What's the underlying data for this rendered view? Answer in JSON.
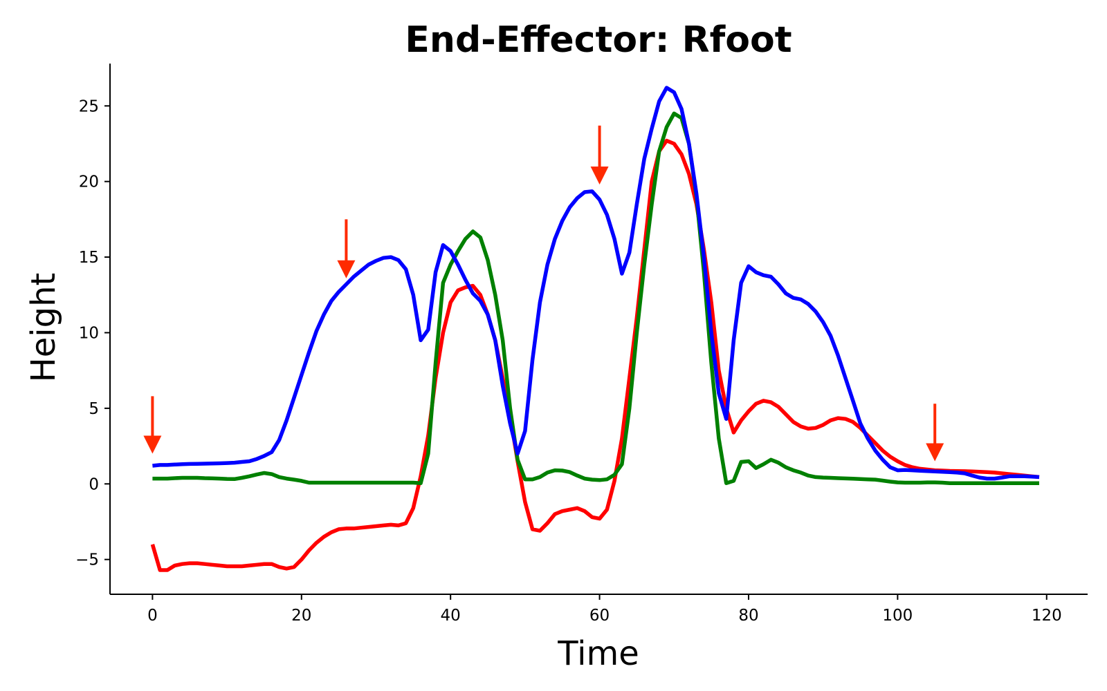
{
  "chart_data": {
    "type": "line",
    "title": "End-Effector: Rfoot",
    "xlabel": "Time",
    "ylabel": "Height",
    "xlim": [
      -5.7,
      125.5
    ],
    "ylim": [
      -7.3,
      27.8
    ],
    "xticks": [
      0,
      20,
      40,
      60,
      80,
      100,
      120
    ],
    "yticks": [
      -5,
      0,
      5,
      10,
      15,
      20,
      25
    ],
    "ytick_labels": [
      "−5",
      "0",
      "5",
      "10",
      "15",
      "20",
      "25"
    ],
    "grid": false,
    "series": [
      {
        "color": "#ff0000",
        "x": [
          0,
          1,
          2,
          3,
          4,
          5,
          6,
          7,
          8,
          9,
          10,
          11,
          12,
          13,
          14,
          15,
          16,
          17,
          18,
          19,
          20,
          21,
          22,
          23,
          24,
          25,
          26,
          27,
          28,
          29,
          30,
          31,
          32,
          33,
          34,
          35,
          36,
          37,
          38,
          39,
          40,
          41,
          42,
          43,
          44,
          45,
          46,
          47,
          48,
          49,
          50,
          51,
          52,
          53,
          54,
          55,
          56,
          57,
          58,
          59,
          60,
          61,
          62,
          63,
          64,
          65,
          66,
          67,
          68,
          69,
          70,
          71,
          72,
          73,
          74,
          75,
          76,
          77,
          78,
          79,
          80,
          81,
          82,
          83,
          84,
          85,
          86,
          87,
          88,
          89,
          90,
          91,
          92,
          93,
          94,
          95,
          96,
          97,
          98,
          99,
          100,
          101,
          102,
          103,
          104,
          105,
          106,
          107,
          108,
          109,
          110,
          111,
          112,
          113,
          114,
          115,
          116,
          117,
          118,
          119
        ],
        "y": [
          -4.0,
          -5.7,
          -5.7,
          -5.4,
          -5.3,
          -5.25,
          -5.25,
          -5.3,
          -5.35,
          -5.4,
          -5.45,
          -5.45,
          -5.45,
          -5.4,
          -5.35,
          -5.3,
          -5.3,
          -5.5,
          -5.6,
          -5.5,
          -5.0,
          -4.4,
          -3.9,
          -3.5,
          -3.2,
          -3.0,
          -2.95,
          -2.95,
          -2.9,
          -2.85,
          -2.8,
          -2.75,
          -2.7,
          -2.75,
          -2.6,
          -1.6,
          0.5,
          3.2,
          7.0,
          10.0,
          12.0,
          12.8,
          13.0,
          13.1,
          12.5,
          11.2,
          9.5,
          7.0,
          4.5,
          1.5,
          -1.2,
          -3.0,
          -3.1,
          -2.6,
          -2.0,
          -1.8,
          -1.7,
          -1.6,
          -1.8,
          -2.2,
          -2.3,
          -1.7,
          0.2,
          3.0,
          7.0,
          11.0,
          15.5,
          20.0,
          22.0,
          22.7,
          22.5,
          21.8,
          20.5,
          18.5,
          15.5,
          12.0,
          7.5,
          5.0,
          3.4,
          4.2,
          4.8,
          5.3,
          5.5,
          5.4,
          5.1,
          4.6,
          4.1,
          3.8,
          3.65,
          3.7,
          3.9,
          4.2,
          4.35,
          4.3,
          4.1,
          3.7,
          3.2,
          2.7,
          2.2,
          1.8,
          1.5,
          1.25,
          1.1,
          1.0,
          0.95,
          0.9,
          0.88,
          0.86,
          0.85,
          0.84,
          0.82,
          0.8,
          0.78,
          0.75,
          0.7,
          0.65,
          0.6,
          0.55,
          0.5,
          0.45
        ]
      },
      {
        "color": "#008000",
        "x": [
          0,
          1,
          2,
          3,
          4,
          5,
          6,
          7,
          8,
          9,
          10,
          11,
          12,
          13,
          14,
          15,
          16,
          17,
          18,
          19,
          20,
          21,
          22,
          23,
          24,
          25,
          26,
          27,
          28,
          29,
          30,
          31,
          32,
          33,
          34,
          35,
          36,
          37,
          38,
          39,
          40,
          41,
          42,
          43,
          44,
          45,
          46,
          47,
          48,
          49,
          50,
          51,
          52,
          53,
          54,
          55,
          56,
          57,
          58,
          59,
          60,
          61,
          62,
          63,
          64,
          65,
          66,
          67,
          68,
          69,
          70,
          71,
          72,
          73,
          74,
          75,
          76,
          77,
          78,
          79,
          80,
          81,
          82,
          83,
          84,
          85,
          86,
          87,
          88,
          89,
          90,
          91,
          92,
          93,
          94,
          95,
          96,
          97,
          98,
          99,
          100,
          101,
          102,
          103,
          104,
          105,
          106,
          107,
          108,
          109,
          110,
          111,
          112,
          113,
          114,
          115,
          116,
          117,
          118,
          119
        ],
        "y": [
          0.35,
          0.35,
          0.35,
          0.38,
          0.4,
          0.4,
          0.4,
          0.38,
          0.37,
          0.35,
          0.33,
          0.32,
          0.4,
          0.5,
          0.62,
          0.72,
          0.65,
          0.45,
          0.35,
          0.28,
          0.2,
          0.08,
          0.08,
          0.08,
          0.08,
          0.08,
          0.08,
          0.08,
          0.08,
          0.08,
          0.08,
          0.08,
          0.08,
          0.08,
          0.08,
          0.08,
          0.05,
          2.0,
          8.0,
          13.3,
          14.5,
          15.4,
          16.2,
          16.7,
          16.3,
          14.8,
          12.5,
          9.5,
          5.0,
          1.6,
          0.3,
          0.3,
          0.45,
          0.75,
          0.9,
          0.88,
          0.78,
          0.55,
          0.35,
          0.28,
          0.25,
          0.3,
          0.6,
          1.3,
          5.0,
          10.0,
          14.5,
          18.5,
          22.0,
          23.6,
          24.5,
          24.2,
          22.5,
          19.0,
          14.0,
          8.0,
          3.0,
          0.05,
          0.2,
          1.45,
          1.5,
          1.05,
          1.3,
          1.6,
          1.4,
          1.1,
          0.9,
          0.75,
          0.55,
          0.45,
          0.42,
          0.4,
          0.38,
          0.36,
          0.34,
          0.32,
          0.3,
          0.28,
          0.22,
          0.15,
          0.1,
          0.08,
          0.08,
          0.08,
          0.1,
          0.1,
          0.08,
          0.05,
          0.05,
          0.05,
          0.05,
          0.05,
          0.05,
          0.05,
          0.05,
          0.05,
          0.05,
          0.05,
          0.05,
          0.05
        ]
      },
      {
        "color": "#0000ff",
        "x": [
          0,
          1,
          2,
          3,
          4,
          5,
          6,
          7,
          8,
          9,
          10,
          11,
          12,
          13,
          14,
          15,
          16,
          17,
          18,
          19,
          20,
          21,
          22,
          23,
          24,
          25,
          26,
          27,
          28,
          29,
          30,
          31,
          32,
          33,
          34,
          35,
          36,
          37,
          38,
          39,
          40,
          41,
          42,
          43,
          44,
          45,
          46,
          47,
          48,
          49,
          50,
          51,
          52,
          53,
          54,
          55,
          56,
          57,
          58,
          59,
          60,
          61,
          62,
          63,
          64,
          65,
          66,
          67,
          68,
          69,
          70,
          71,
          72,
          73,
          74,
          75,
          76,
          77,
          78,
          79,
          80,
          81,
          82,
          83,
          84,
          85,
          86,
          87,
          88,
          89,
          90,
          91,
          92,
          93,
          94,
          95,
          96,
          97,
          98,
          99,
          100,
          101,
          102,
          103,
          104,
          105,
          106,
          107,
          108,
          109,
          110,
          111,
          112,
          113,
          114,
          115,
          116,
          117,
          118,
          119
        ],
        "y": [
          1.2,
          1.25,
          1.25,
          1.28,
          1.3,
          1.32,
          1.33,
          1.34,
          1.35,
          1.36,
          1.38,
          1.4,
          1.45,
          1.5,
          1.65,
          1.85,
          2.1,
          2.9,
          4.2,
          5.7,
          7.2,
          8.7,
          10.1,
          11.2,
          12.1,
          12.7,
          13.2,
          13.7,
          14.1,
          14.5,
          14.75,
          14.95,
          15.0,
          14.8,
          14.2,
          12.5,
          9.5,
          10.2,
          14.0,
          15.8,
          15.4,
          14.5,
          13.5,
          12.6,
          12.1,
          11.2,
          9.5,
          6.5,
          4.0,
          2.0,
          3.5,
          8.2,
          12.0,
          14.5,
          16.2,
          17.4,
          18.3,
          18.9,
          19.3,
          19.35,
          18.8,
          17.8,
          16.2,
          13.9,
          15.3,
          18.5,
          21.5,
          23.5,
          25.3,
          26.2,
          25.9,
          24.8,
          22.5,
          19.2,
          15.0,
          10.0,
          6.0,
          4.3,
          9.5,
          13.3,
          14.4,
          14.0,
          13.8,
          13.7,
          13.2,
          12.6,
          12.3,
          12.2,
          11.9,
          11.4,
          10.7,
          9.8,
          8.5,
          7.0,
          5.5,
          4.0,
          3.0,
          2.2,
          1.6,
          1.1,
          0.9,
          0.92,
          0.9,
          0.87,
          0.85,
          0.82,
          0.8,
          0.78,
          0.75,
          0.7,
          0.55,
          0.42,
          0.35,
          0.35,
          0.42,
          0.5,
          0.5,
          0.5,
          0.48,
          0.45
        ]
      }
    ],
    "annotations": [
      {
        "type": "arrow",
        "x": 0,
        "y_tip": 2.0,
        "y_tail": 5.8,
        "color": "#ff2a00"
      },
      {
        "type": "arrow",
        "x": 26,
        "y_tip": 13.6,
        "y_tail": 17.5,
        "color": "#ff2a00"
      },
      {
        "type": "arrow",
        "x": 60,
        "y_tip": 19.8,
        "y_tail": 23.7,
        "color": "#ff2a00"
      },
      {
        "type": "arrow",
        "x": 105,
        "y_tip": 1.5,
        "y_tail": 5.3,
        "color": "#ff2a00"
      }
    ]
  }
}
